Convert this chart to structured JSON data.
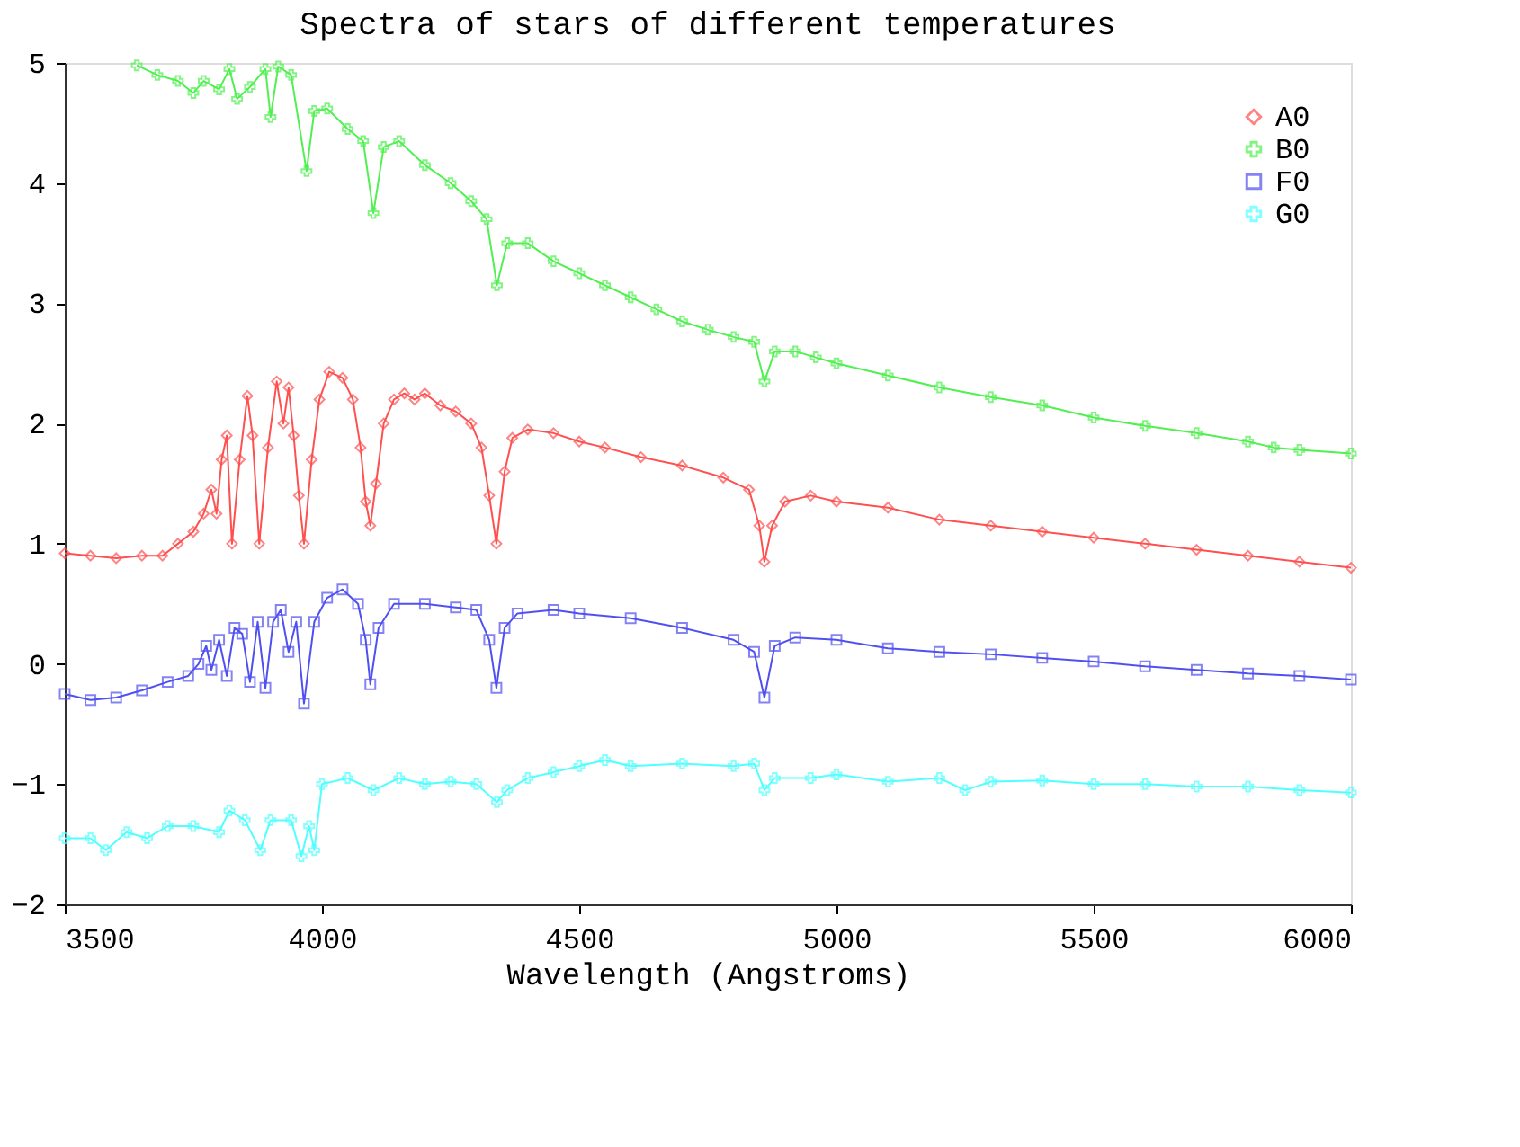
{
  "chart_data": {
    "type": "line",
    "title": "Spectra of stars of different temperatures",
    "xlabel": "Wavelength (Angstroms)",
    "xlim": [
      3500,
      6000
    ],
    "xticks": [
      3500,
      4000,
      4500,
      5000,
      5500,
      6000
    ],
    "ylim": [
      -2,
      5
    ],
    "yticks": [
      -2,
      -1,
      0,
      1,
      2,
      3,
      4,
      5
    ],
    "grid": false,
    "legend": "top right",
    "line_style": "solid",
    "series": [
      {
        "name": "A0",
        "color": "#ff5050",
        "marker": "diamond",
        "x": [
          3500,
          3550,
          3600,
          3650,
          3690,
          3720,
          3750,
          3770,
          3785,
          3795,
          3805,
          3815,
          3825,
          3840,
          3855,
          3865,
          3878,
          3895,
          3912,
          3925,
          3935,
          3945,
          3955,
          3965,
          3980,
          3995,
          4014,
          4040,
          4060,
          4075,
          4085,
          4094,
          4105,
          4120,
          4140,
          4160,
          4180,
          4200,
          4230,
          4260,
          4290,
          4310,
          4325,
          4339,
          4355,
          4370,
          4400,
          4450,
          4500,
          4550,
          4620,
          4700,
          4780,
          4830,
          4850,
          4860,
          4875,
          4900,
          4950,
          5000,
          5100,
          5200,
          5300,
          5400,
          5500,
          5600,
          5700,
          5800,
          5900,
          6000
        ],
        "values": [
          0.92,
          0.9,
          0.88,
          0.9,
          0.9,
          1.0,
          1.1,
          1.25,
          1.45,
          1.25,
          1.7,
          1.9,
          1.0,
          1.7,
          2.23,
          1.9,
          1.0,
          1.8,
          2.35,
          2.0,
          2.3,
          1.9,
          1.4,
          1.0,
          1.7,
          2.2,
          2.43,
          2.38,
          2.2,
          1.8,
          1.35,
          1.15,
          1.5,
          2.0,
          2.2,
          2.25,
          2.2,
          2.25,
          2.15,
          2.1,
          2.0,
          1.8,
          1.4,
          1.0,
          1.6,
          1.88,
          1.95,
          1.92,
          1.85,
          1.8,
          1.72,
          1.65,
          1.55,
          1.45,
          1.15,
          0.85,
          1.15,
          1.35,
          1.4,
          1.35,
          1.3,
          1.2,
          1.15,
          1.1,
          1.05,
          1.0,
          0.95,
          0.9,
          0.85,
          0.8
        ]
      },
      {
        "name": "B0",
        "color": "#50f050",
        "marker": "cross",
        "x": [
          3640,
          3680,
          3720,
          3750,
          3770,
          3800,
          3820,
          3835,
          3860,
          3890,
          3900,
          3915,
          3940,
          3970,
          3985,
          4010,
          4050,
          4080,
          4100,
          4120,
          4150,
          4200,
          4250,
          4290,
          4320,
          4340,
          4360,
          4400,
          4450,
          4500,
          4550,
          4600,
          4650,
          4700,
          4750,
          4800,
          4840,
          4860,
          4880,
          4920,
          4960,
          5000,
          5100,
          5200,
          5300,
          5400,
          5500,
          5600,
          5700,
          5800,
          5850,
          5900,
          6000
        ],
        "values": [
          4.98,
          4.9,
          4.85,
          4.75,
          4.85,
          4.78,
          4.95,
          4.7,
          4.8,
          4.95,
          4.55,
          4.97,
          4.9,
          4.1,
          4.6,
          4.62,
          4.45,
          4.35,
          3.75,
          4.3,
          4.35,
          4.15,
          4.0,
          3.85,
          3.7,
          3.15,
          3.5,
          3.5,
          3.35,
          3.25,
          3.15,
          3.05,
          2.95,
          2.85,
          2.78,
          2.72,
          2.68,
          2.35,
          2.6,
          2.6,
          2.55,
          2.5,
          2.4,
          2.3,
          2.22,
          2.15,
          2.05,
          1.98,
          1.92,
          1.85,
          1.8,
          1.78,
          1.75
        ]
      },
      {
        "name": "F0",
        "color": "#5050f0",
        "marker": "square",
        "x": [
          3500,
          3550,
          3600,
          3650,
          3700,
          3740,
          3760,
          3775,
          3785,
          3800,
          3815,
          3830,
          3845,
          3860,
          3875,
          3890,
          3905,
          3920,
          3935,
          3950,
          3965,
          3985,
          4010,
          4040,
          4070,
          4085,
          4094,
          4110,
          4140,
          4200,
          4260,
          4300,
          4325,
          4339,
          4355,
          4380,
          4450,
          4500,
          4600,
          4700,
          4800,
          4840,
          4860,
          4880,
          4920,
          5000,
          5100,
          5200,
          5300,
          5400,
          5500,
          5600,
          5700,
          5800,
          5900,
          6000
        ],
        "values": [
          -0.25,
          -0.3,
          -0.28,
          -0.22,
          -0.15,
          -0.1,
          0.0,
          0.15,
          -0.05,
          0.2,
          -0.1,
          0.3,
          0.25,
          -0.15,
          0.35,
          -0.2,
          0.35,
          0.45,
          0.1,
          0.35,
          -0.33,
          0.35,
          0.55,
          0.62,
          0.5,
          0.2,
          -0.17,
          0.3,
          0.5,
          0.5,
          0.47,
          0.45,
          0.2,
          -0.2,
          0.3,
          0.42,
          0.45,
          0.42,
          0.38,
          0.3,
          0.2,
          0.1,
          -0.28,
          0.15,
          0.22,
          0.2,
          0.13,
          0.1,
          0.08,
          0.05,
          0.02,
          -0.02,
          -0.05,
          -0.08,
          -0.1,
          -0.13
        ]
      },
      {
        "name": "G0",
        "color": "#50ffff",
        "marker": "cross",
        "x": [
          3500,
          3550,
          3580,
          3620,
          3660,
          3700,
          3750,
          3800,
          3820,
          3850,
          3880,
          3900,
          3940,
          3960,
          3975,
          3985,
          4000,
          4050,
          4100,
          4150,
          4200,
          4250,
          4300,
          4340,
          4360,
          4400,
          4450,
          4500,
          4550,
          4600,
          4700,
          4800,
          4840,
          4860,
          4880,
          4950,
          5000,
          5100,
          5200,
          5250,
          5300,
          5400,
          5500,
          5600,
          5700,
          5800,
          5900,
          6000
        ],
        "values": [
          -1.45,
          -1.45,
          -1.55,
          -1.4,
          -1.45,
          -1.35,
          -1.35,
          -1.4,
          -1.22,
          -1.3,
          -1.55,
          -1.3,
          -1.3,
          -1.6,
          -1.35,
          -1.55,
          -1.0,
          -0.95,
          -1.05,
          -0.95,
          -1.0,
          -0.98,
          -1.0,
          -1.15,
          -1.05,
          -0.95,
          -0.9,
          -0.85,
          -0.8,
          -0.85,
          -0.83,
          -0.85,
          -0.83,
          -1.05,
          -0.95,
          -0.95,
          -0.92,
          -0.98,
          -0.95,
          -1.05,
          -0.98,
          -0.97,
          -1.0,
          -1.0,
          -1.02,
          -1.02,
          -1.05,
          -1.07
        ]
      }
    ]
  }
}
